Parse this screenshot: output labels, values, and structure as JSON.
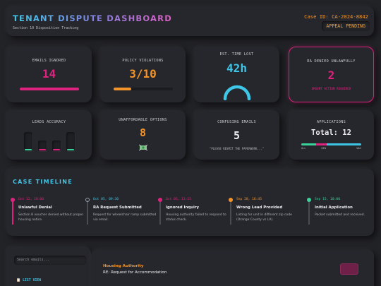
{
  "header": {
    "title": "TENANT DISPUTE DASHBOARD",
    "subtitle": "Section 10 Disposition Tracking",
    "case_id": "Case ID: CA-2024-8842",
    "status": "APPEAL PENDING"
  },
  "stats": {
    "emails_ignored": {
      "label": "EMAILS IGNORED",
      "value": "14",
      "color": "#e0227f",
      "progress": 1.0
    },
    "policy_violations": {
      "label": "POLICY VIOLATIONS",
      "value": "3/10",
      "color": "#f2942a",
      "progress": 0.3
    },
    "time_lost": {
      "label": "EST. TIME LOST",
      "value": "42h",
      "color": "#3fc6e6"
    },
    "ra_denied": {
      "label": "RA DENIED UNLAWFULLY",
      "value": "2",
      "note": "URGENT ACTION REQUIRED",
      "color": "#e0227f"
    },
    "leads_accuracy": {
      "label": "LEADS ACCURACY",
      "bar_colors": [
        "#37d39a",
        "#e0227f",
        "#e0227f",
        "#37d39a"
      ]
    },
    "unaffordable": {
      "label": "UNAFFORDABLE OPTIONS",
      "value": "8",
      "color": "#f2942a",
      "icon": "money-icon"
    },
    "confusing_emails": {
      "label": "CONFUSING EMAILS",
      "value": "5",
      "note": "\"PLEASE RESMIT THE PAPERWORK...\""
    },
    "applications": {
      "label": "APPLICATIONS",
      "value": "Total: 12",
      "segments": [
        {
          "label": "ALL",
          "fraction": 0.25,
          "color": "#37d39a"
        },
        {
          "label": "DEN",
          "fraction": 0.17,
          "color": "#e0227f"
        },
        {
          "label": "WAI",
          "fraction": 0.58,
          "color": "#3fc6e6"
        }
      ]
    }
  },
  "timeline": {
    "title": "CASE TIMELINE",
    "events": [
      {
        "date": "Oct 12, 19:00",
        "heading": "Unlawful Denial",
        "desc": "Section 8 voucher denied without proper housing notice.",
        "color": "#e0227f"
      },
      {
        "date": "Oct 05, 09:30",
        "heading": "RA Request Submitted",
        "desc": "Request for wheelchair ramp submitted via email.",
        "color": "#3fc6e6"
      },
      {
        "date": "Oct 05, 11:15",
        "heading": "Ignored Inquiry",
        "desc": "Housing authority failed to respond to status check.",
        "color": "#e0227f"
      },
      {
        "date": "Sep 28, 16:45",
        "heading": "Wrong Lead Provided",
        "desc": "Listing for unit in different zip code (Orange County vs LA).",
        "color": "#f2942a"
      },
      {
        "date": "Sep 15, 10:00",
        "heading": "Initial Application",
        "desc": "Packet submitted and received.",
        "color": "#37d39a"
      }
    ]
  },
  "sidebar": {
    "search_placeholder": "Search emails...",
    "list_view": "LIST VIEW"
  },
  "email": {
    "sender": "Housing Authority",
    "subject": "RE: Request for Accommodation"
  }
}
